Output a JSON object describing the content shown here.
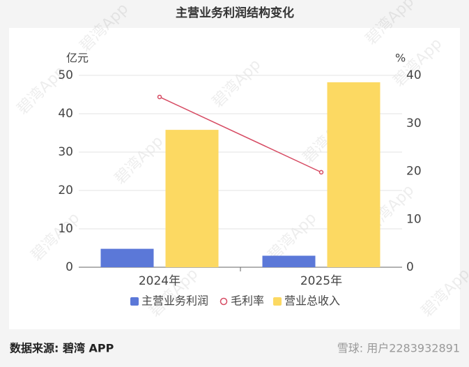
{
  "chart_data": {
    "type": "bar",
    "title": "主营业务利润结构变化",
    "categories": [
      "2024年",
      "2025年"
    ],
    "series": [
      {
        "name": "主营业务利润",
        "type": "bar",
        "color": "#5b78d8",
        "values": [
          4.8,
          3.0
        ]
      },
      {
        "name": "毛利率",
        "type": "line",
        "axis": "y2",
        "color": "#d64a62",
        "values": [
          35.5,
          19.8
        ]
      },
      {
        "name": "营业总收入",
        "type": "bar",
        "color": "#fcd962",
        "values": [
          35.8,
          48.2
        ]
      }
    ],
    "y_label": "亿元",
    "y2_label": "%",
    "ylim": [
      0,
      50
    ],
    "yticks": [
      0,
      10,
      20,
      30,
      40,
      50
    ],
    "y2lim": [
      0,
      40
    ],
    "y2ticks": [
      0,
      10,
      20,
      30,
      40
    ],
    "grid": true,
    "legend": "bottom"
  },
  "watermark": "碧湾App",
  "footer": {
    "source": "数据来源: 碧湾 APP",
    "user": "雪球: 用户2283932891"
  }
}
